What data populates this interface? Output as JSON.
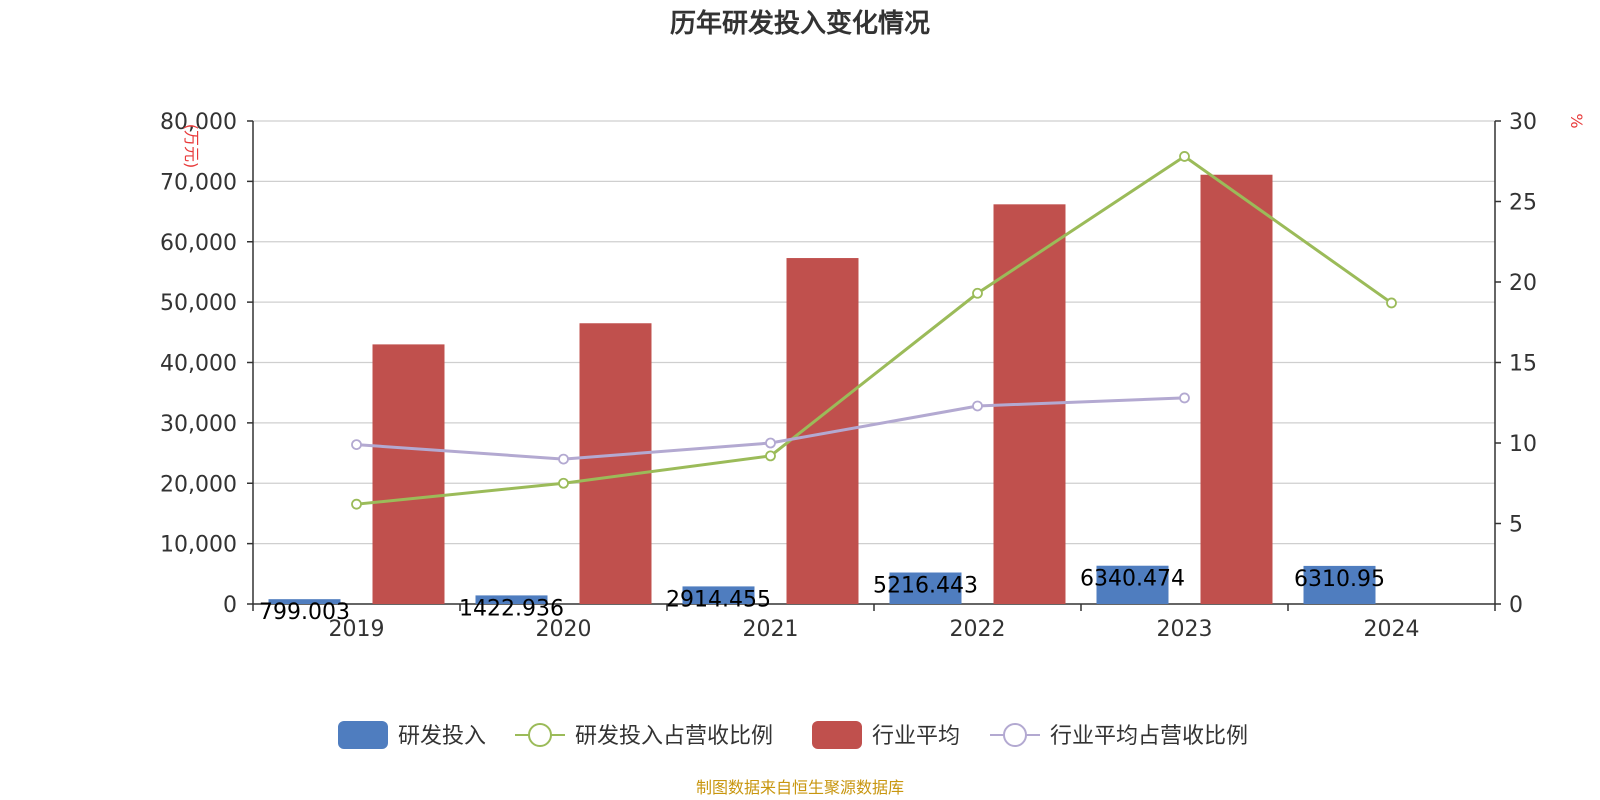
{
  "chart_data": {
    "type": "bar",
    "title": "历年研发投入变化情况",
    "categories": [
      "2019",
      "2020",
      "2021",
      "2022",
      "2023",
      "2024"
    ],
    "y_left": {
      "unit": "(万元)",
      "ylim": [
        0,
        80000
      ],
      "ticks": [
        "0",
        "10,000",
        "20,000",
        "30,000",
        "40,000",
        "50,000",
        "60,000",
        "70,000",
        "80,000"
      ]
    },
    "y_right": {
      "unit": "%",
      "ylim": [
        0,
        30
      ],
      "ticks": [
        "0",
        "5",
        "10",
        "15",
        "20",
        "25",
        "30"
      ]
    },
    "series": [
      {
        "name": "研发投入",
        "kind": "bar",
        "axis": "left",
        "color": "#4f7dbf",
        "values": [
          799.003,
          1422.936,
          2914.455,
          5216.443,
          6340.474,
          6310.95
        ],
        "labels": [
          "799.003",
          "1422.936",
          "2914.455",
          "5216.443",
          "6340.474",
          "6310.95"
        ]
      },
      {
        "name": "研发投入占营收比例",
        "kind": "line",
        "axis": "right",
        "color": "#9bbb59",
        "values": [
          6.2,
          7.5,
          9.2,
          19.3,
          27.8,
          18.7
        ]
      },
      {
        "name": "行业平均",
        "kind": "bar",
        "axis": "left",
        "color": "#c0504d",
        "values": [
          43000,
          46500,
          57300,
          66200,
          71100,
          null
        ]
      },
      {
        "name": "行业平均占营收比例",
        "kind": "line",
        "axis": "right",
        "color": "#b3a9d1",
        "values": [
          9.9,
          9.0,
          10.0,
          12.3,
          12.8,
          null
        ]
      }
    ],
    "grid": true,
    "legend_position": "bottom"
  },
  "source_note": "制图数据来自恒生聚源数据库"
}
